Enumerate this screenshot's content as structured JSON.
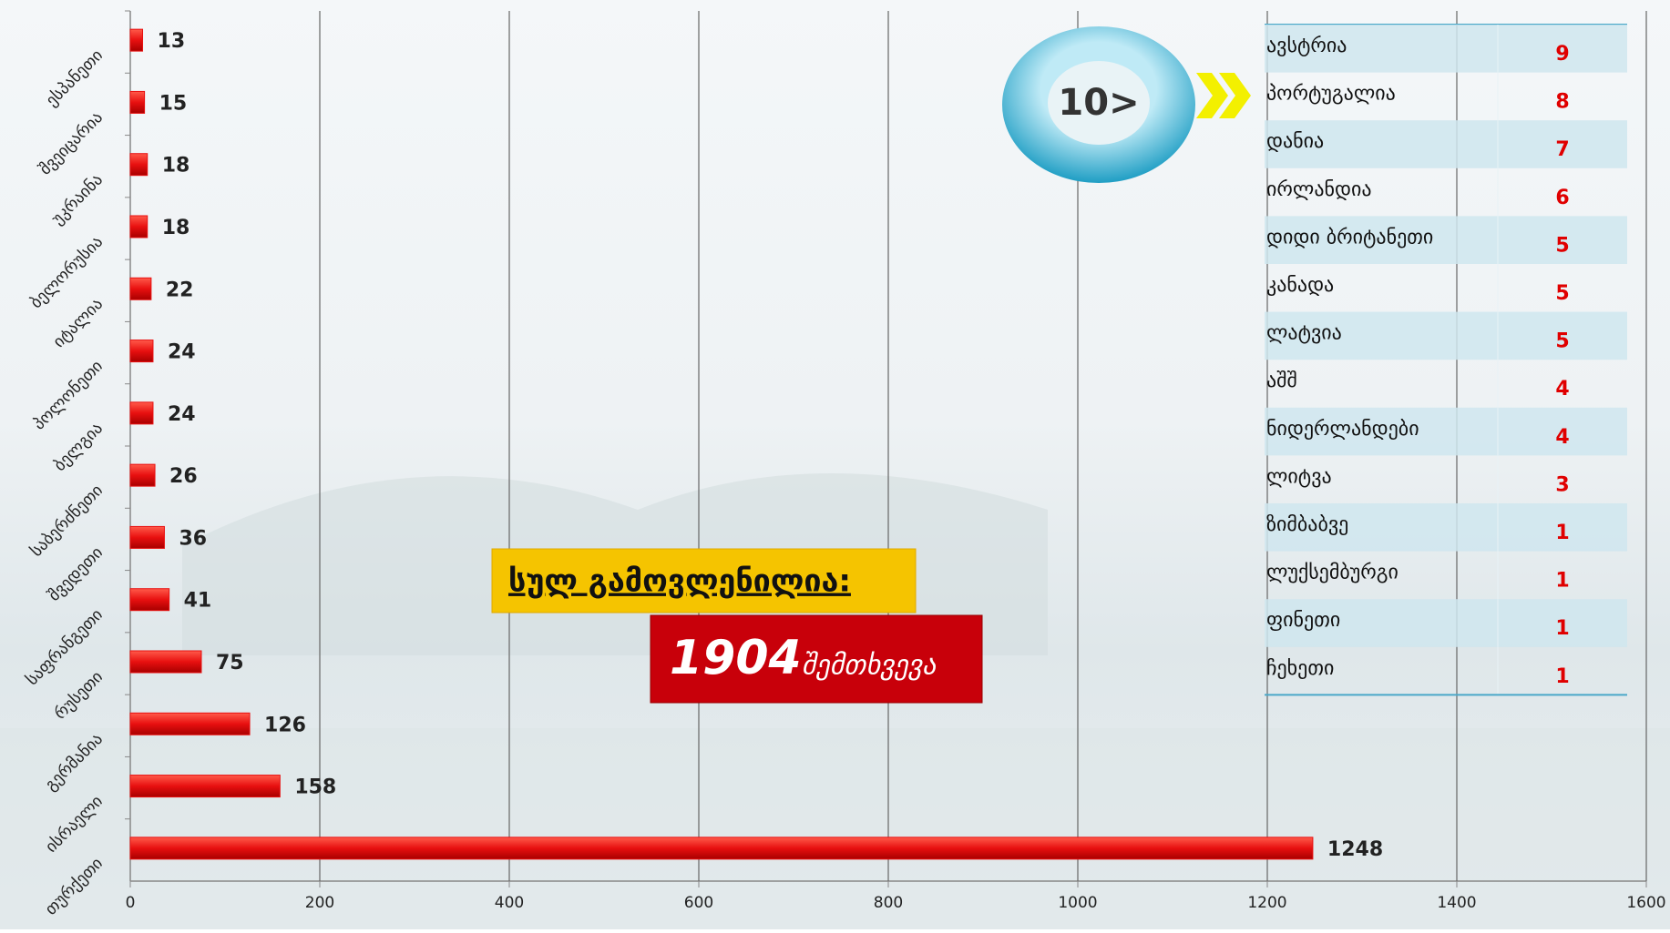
{
  "chart_data": {
    "type": "bar",
    "orientation": "horizontal",
    "categories": [
      "ესპანეთი",
      "შვეიცარია",
      "უკრაინა",
      "ბელორუსია",
      "იტალია",
      "პოლონეთი",
      "ბელგია",
      "საბერძნეთი",
      "შვედეთი",
      "საფრანგეთი",
      "რუსეთი",
      "გერმანია",
      "ისრაელი",
      "თურქეთი"
    ],
    "values": [
      13,
      15,
      18,
      18,
      22,
      24,
      24,
      26,
      36,
      41,
      75,
      126,
      158,
      1248
    ],
    "color": "#e81010",
    "xlim": [
      0,
      1600
    ],
    "xticks": [
      0,
      200,
      400,
      600,
      800,
      1000,
      1200,
      1400,
      1600
    ],
    "grid": true
  },
  "badge": "10>",
  "table": {
    "rows": [
      [
        "ავსტრია",
        9
      ],
      [
        "პორტუგალია",
        8
      ],
      [
        "დანია",
        7
      ],
      [
        "ირლანდია",
        6
      ],
      [
        "დიდი ბრიტანეთი",
        5
      ],
      [
        "კანადა",
        5
      ],
      [
        "ლატვია",
        5
      ],
      [
        "აშშ",
        4
      ],
      [
        "ნიდერლანდები",
        4
      ],
      [
        "ლიტვა",
        3
      ],
      [
        "ზიმბაბვე",
        1
      ],
      [
        "ლუქსემბურგი",
        1
      ],
      [
        "ფინეთი",
        1
      ],
      [
        "ჩეხეთი",
        1
      ]
    ]
  },
  "callout": {
    "label": "სულ გამოვლენილია:",
    "total": 1904,
    "unit": "შემთხვევა"
  }
}
